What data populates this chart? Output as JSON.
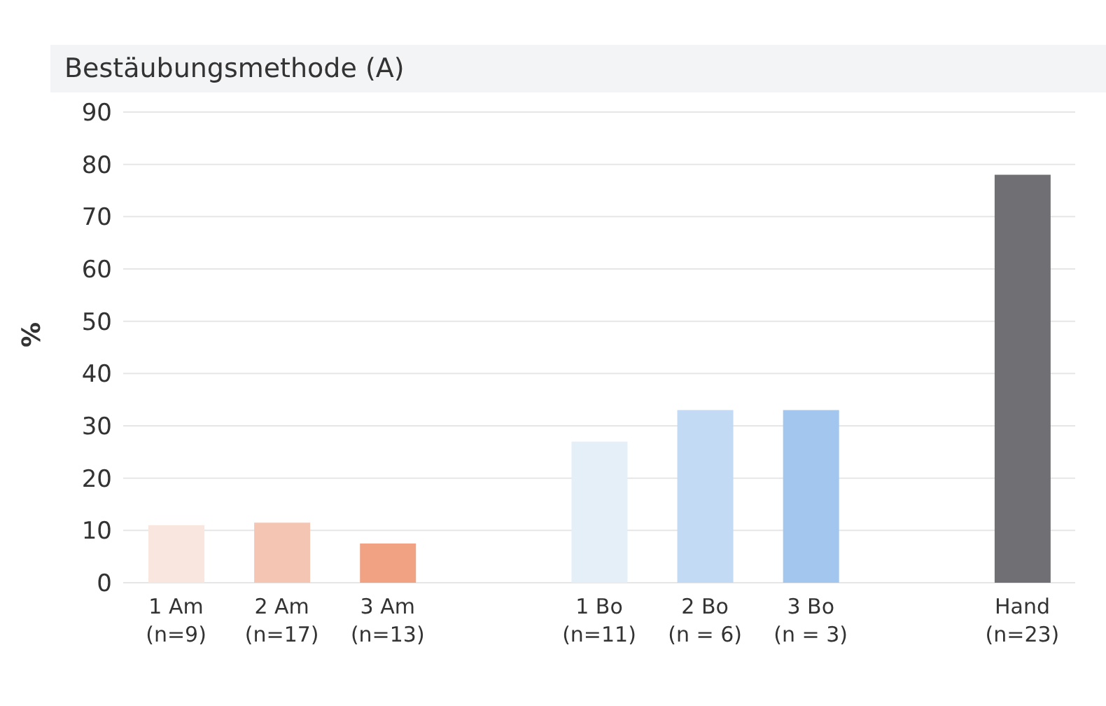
{
  "chart_data": {
    "type": "bar",
    "title": "Bestäubungsmethode (A)",
    "ylabel": "%",
    "categories": [
      "1 Am\n(n=9)",
      "2 Am\n(n=17)",
      "3 Am\n(n=13)",
      null,
      "1 Bo\n(n=11)",
      "2 Bo\n(n = 6)",
      "3 Bo\n(n = 3)",
      null,
      "Hand\n(n=23)"
    ],
    "values": [
      11,
      11.5,
      7.5,
      null,
      27,
      33,
      33,
      null,
      78
    ],
    "colors": [
      "#f9e6df",
      "#f5c5b3",
      "#f0a283",
      null,
      "#e5eff8",
      "#c2daf3",
      "#a3c6ee",
      null,
      "#707074"
    ],
    "ylim": [
      0,
      90
    ],
    "yticks": [
      0,
      10,
      20,
      30,
      40,
      50,
      60,
      70,
      80,
      90
    ],
    "grid": "y"
  }
}
